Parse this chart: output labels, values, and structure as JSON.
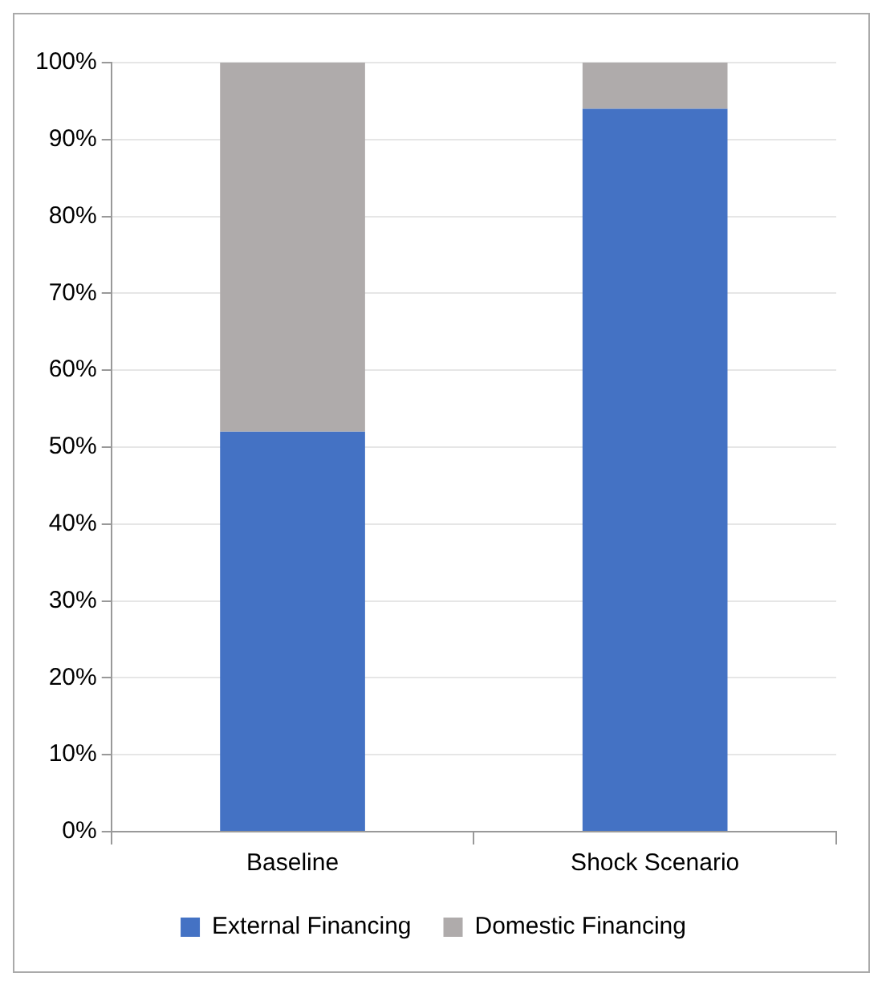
{
  "chart_data": {
    "type": "bar",
    "stacked": true,
    "categories": [
      "Baseline",
      "Shock Scenario"
    ],
    "series": [
      {
        "name": "External Financing",
        "color": "#4472c4",
        "values": [
          52,
          94
        ]
      },
      {
        "name": "Domestic Financing",
        "color": "#afabab",
        "values": [
          48,
          6
        ]
      }
    ],
    "ylim": [
      0,
      100
    ],
    "yticks": [
      {
        "value": 0,
        "label": "0%"
      },
      {
        "value": 10,
        "label": "10%"
      },
      {
        "value": 20,
        "label": "20%"
      },
      {
        "value": 30,
        "label": "30%"
      },
      {
        "value": 40,
        "label": "40%"
      },
      {
        "value": 50,
        "label": "50%"
      },
      {
        "value": 60,
        "label": "60%"
      },
      {
        "value": 70,
        "label": "70%"
      },
      {
        "value": 80,
        "label": "80%"
      },
      {
        "value": 90,
        "label": "90%"
      },
      {
        "value": 100,
        "label": "100%"
      }
    ],
    "grid": "y",
    "legend": "bottom"
  }
}
